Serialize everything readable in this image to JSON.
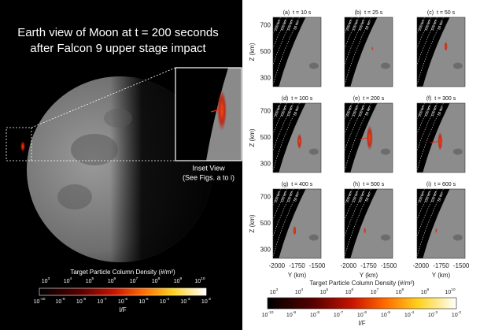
{
  "left": {
    "title": [
      "Earth view of Moon at t = 200 seconds",
      "after Falcon 9 upper stage impact"
    ],
    "inset_label": [
      "Inset View",
      "(See Figs. a to i)"
    ]
  },
  "colorbar": {
    "title": "Target Particle Column Density (#/m²)",
    "base": "10",
    "density_exponents": [
      "3",
      "4",
      "5",
      "6",
      "7",
      "8",
      "9",
      "10"
    ],
    "if_exponents": [
      "-10",
      "-9",
      "-8",
      "-7",
      "-6",
      "-5",
      "-4",
      "-3",
      "-2"
    ],
    "label": "I/F"
  },
  "panels": [
    {
      "letter": "(a)",
      "time": "t = 10 s"
    },
    {
      "letter": "(b)",
      "time": "t = 25 s"
    },
    {
      "letter": "(c)",
      "time": "t = 50 s"
    },
    {
      "letter": "(d)",
      "time": "t = 100 s"
    },
    {
      "letter": "(e)",
      "time": "t = 200 s"
    },
    {
      "letter": "(f)",
      "time": "t = 300 s"
    },
    {
      "letter": "(g)",
      "time": "t = 400 s"
    },
    {
      "letter": "(h)",
      "time": "t = 500 s"
    },
    {
      "letter": "(i)",
      "time": "t = 600 s"
    }
  ],
  "axes": {
    "ylabel": "Z (km)",
    "yticks": [
      "700",
      "500",
      "300"
    ],
    "xlabel": "Y (km)",
    "xticks": [
      "-2000",
      "-1750",
      "-1500"
    ],
    "altitudes": [
      "200 km",
      "150 km",
      "100 km",
      "50 km"
    ]
  }
}
